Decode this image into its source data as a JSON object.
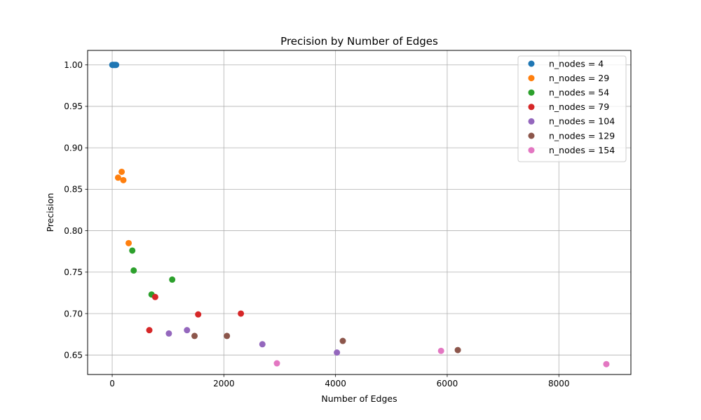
{
  "chart_data": {
    "type": "scatter",
    "title": "Precision by Number of Edges",
    "xlabel": "Number of Edges",
    "ylabel": "Precision",
    "xlim": [
      -440,
      9290
    ],
    "ylim": [
      0.6265,
      1.0175
    ],
    "x_ticks": [
      0,
      2000,
      4000,
      6000,
      8000
    ],
    "x_tick_labels": [
      "0",
      "2000",
      "4000",
      "6000",
      "8000"
    ],
    "y_ticks": [
      0.65,
      0.7,
      0.75,
      0.8,
      0.85,
      0.9,
      0.95,
      1.0
    ],
    "y_tick_labels": [
      "0.65",
      "0.70",
      "0.75",
      "0.80",
      "0.85",
      "0.90",
      "0.95",
      "1.00"
    ],
    "grid": true,
    "legend_position": "top-right",
    "series": [
      {
        "name": "n_nodes = 4",
        "color": "#1f77b4",
        "points": [
          [
            2,
            1.0
          ],
          [
            12,
            1.0
          ],
          [
            25,
            1.0
          ],
          [
            40,
            1.0
          ],
          [
            55,
            1.0
          ],
          [
            70,
            1.0
          ]
        ]
      },
      {
        "name": "n_nodes = 29",
        "color": "#ff7f0e",
        "points": [
          [
            105,
            0.864
          ],
          [
            170,
            0.871
          ],
          [
            200,
            0.861
          ],
          [
            295,
            0.785
          ]
        ]
      },
      {
        "name": "n_nodes = 54",
        "color": "#2ca02c",
        "points": [
          [
            360,
            0.776
          ],
          [
            385,
            0.752
          ],
          [
            705,
            0.723
          ],
          [
            1075,
            0.741
          ]
        ]
      },
      {
        "name": "n_nodes = 79",
        "color": "#d62728",
        "points": [
          [
            665,
            0.68
          ],
          [
            770,
            0.72
          ],
          [
            1540,
            0.699
          ],
          [
            2305,
            0.7
          ]
        ]
      },
      {
        "name": "n_nodes = 104",
        "color": "#9467bd",
        "points": [
          [
            1015,
            0.676
          ],
          [
            1340,
            0.68
          ],
          [
            2690,
            0.663
          ],
          [
            4025,
            0.653
          ]
        ]
      },
      {
        "name": "n_nodes = 129",
        "color": "#8c564b",
        "points": [
          [
            1475,
            0.673
          ],
          [
            2055,
            0.673
          ],
          [
            4130,
            0.667
          ],
          [
            6190,
            0.656
          ]
        ]
      },
      {
        "name": "n_nodes = 154",
        "color": "#e377c2",
        "points": [
          [
            2950,
            0.64
          ],
          [
            5890,
            0.655
          ],
          [
            8850,
            0.639
          ]
        ]
      }
    ]
  }
}
